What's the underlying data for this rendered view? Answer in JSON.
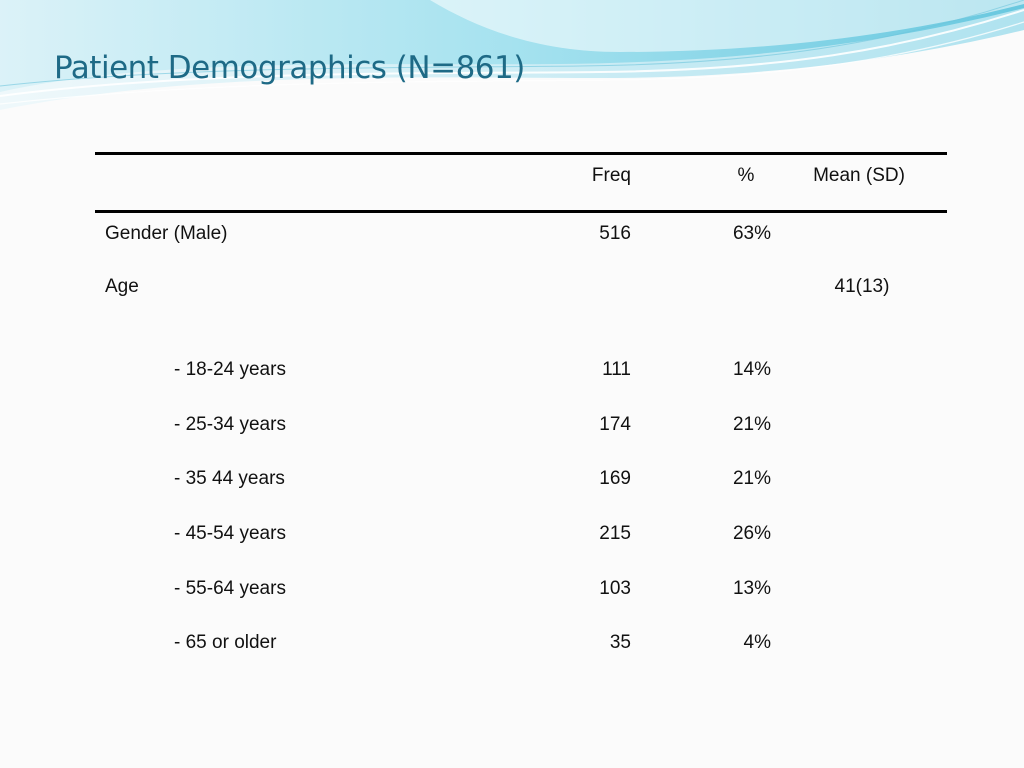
{
  "slide": {
    "title": "Patient Demographics (N=861)"
  },
  "table": {
    "headers": [
      "",
      "Freq",
      "%",
      "Mean (SD)"
    ],
    "rows": [
      {
        "label": "Gender (Male)",
        "freq": "516",
        "pct": "63%",
        "mean": ""
      },
      {
        "label": "Age",
        "freq": "",
        "pct": "",
        "mean": "41(13)"
      },
      {
        "label": "- 18-24 years",
        "freq": "111",
        "pct": "14%",
        "mean": ""
      },
      {
        "label": "- 25-34 years",
        "freq": "174",
        "pct": "21%",
        "mean": ""
      },
      {
        "label": "- 35 44 years",
        "freq": "169",
        "pct": "21%",
        "mean": ""
      },
      {
        "label": "- 45-54 years",
        "freq": "215",
        "pct": "26%",
        "mean": ""
      },
      {
        "label": "- 55-64 years",
        "freq": "103",
        "pct": "13%",
        "mean": ""
      },
      {
        "label": "- 65 or older",
        "freq": "35",
        "pct": "4%",
        "mean": ""
      }
    ]
  },
  "colors": {
    "title": "#1e6a86",
    "wave_light": "#bfe9f3",
    "wave_mid": "#7fd3e8",
    "wave_dark": "#4fb8d6",
    "rule": "#000000"
  }
}
